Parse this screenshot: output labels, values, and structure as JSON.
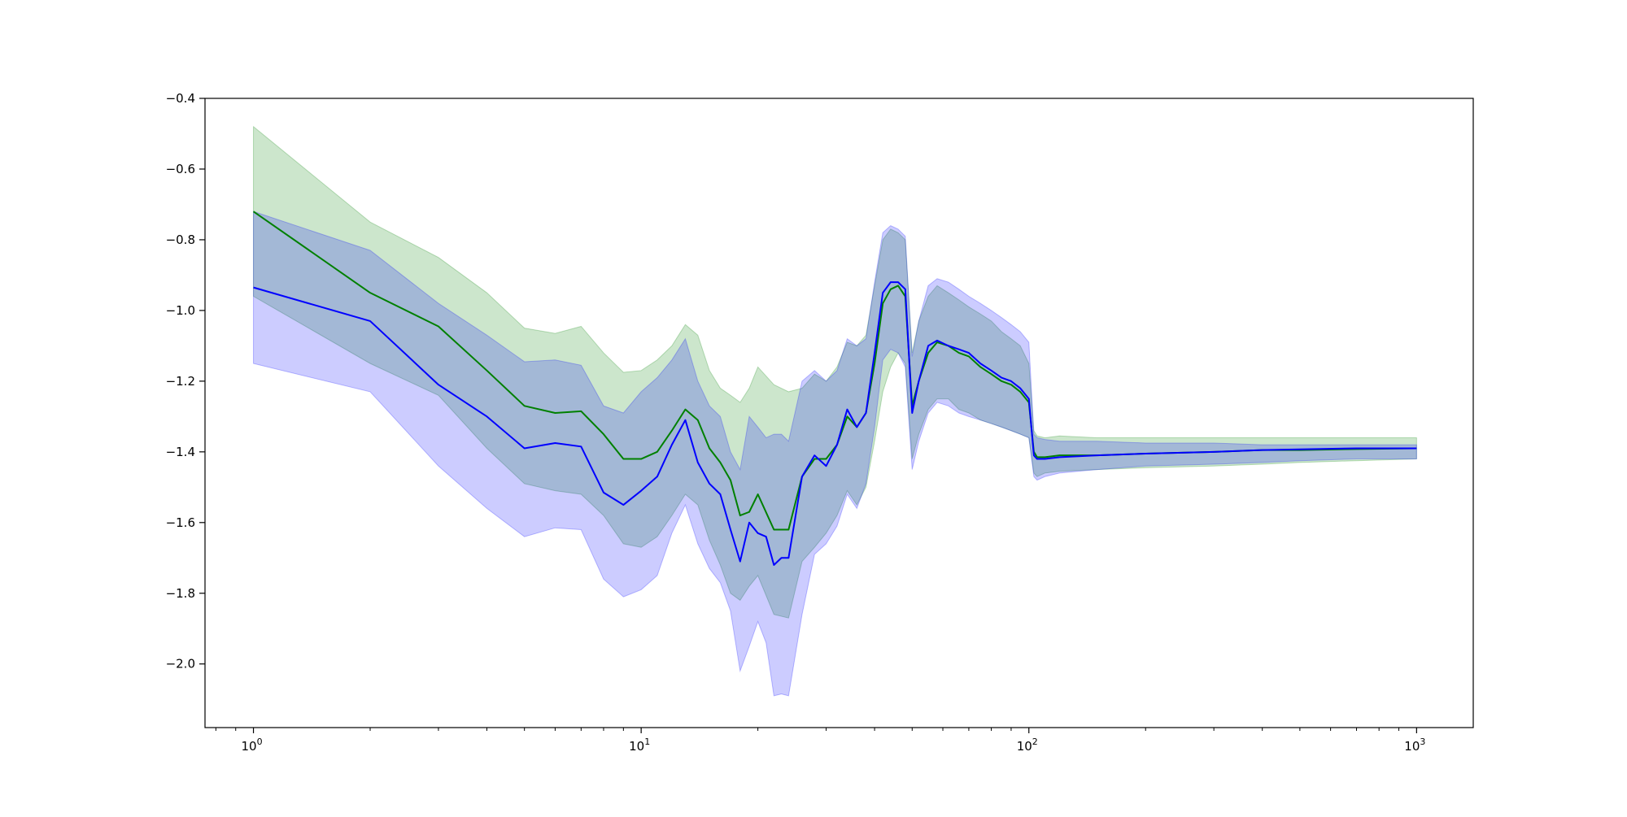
{
  "chart_data": {
    "type": "line",
    "title": "",
    "xlabel": "",
    "ylabel": "",
    "xscale": "log",
    "xlim": [
      0.75,
      1400
    ],
    "ylim": [
      -2.18,
      -0.4
    ],
    "grid": false,
    "x_ticks": [
      1,
      10,
      100,
      1000
    ],
    "x_tick_labels": [
      {
        "base": "10",
        "exp": "0"
      },
      {
        "base": "10",
        "exp": "1"
      },
      {
        "base": "10",
        "exp": "2"
      },
      {
        "base": "10",
        "exp": "3"
      }
    ],
    "y_ticks": [
      -2.0,
      -1.8,
      -1.6,
      -1.4,
      -1.2,
      -1.0,
      -0.8,
      -0.6,
      -0.4
    ],
    "y_tick_labels": [
      "−2.0",
      "−1.8",
      "−1.6",
      "−1.4",
      "−1.2",
      "−1.0",
      "−0.8",
      "−0.6",
      "−0.4"
    ],
    "series": [
      {
        "color": "#008000",
        "band_color": "#008000",
        "band_opacity": 0.2,
        "x": [
          1,
          2,
          3,
          4,
          5,
          6,
          7,
          8,
          9,
          10,
          11,
          12,
          13,
          14,
          15,
          16,
          17,
          18,
          19,
          20,
          22,
          24,
          26,
          28,
          30,
          32,
          34,
          36,
          38,
          40,
          42,
          44,
          46,
          48,
          50,
          52,
          55,
          58,
          62,
          66,
          70,
          75,
          80,
          85,
          90,
          95,
          100,
          103,
          105,
          110,
          120,
          150,
          200,
          300,
          400,
          500,
          700,
          1000
        ],
        "y": [
          -0.72,
          -0.95,
          -1.045,
          -1.17,
          -1.27,
          -1.29,
          -1.285,
          -1.35,
          -1.42,
          -1.42,
          -1.4,
          -1.34,
          -1.28,
          -1.31,
          -1.39,
          -1.43,
          -1.48,
          -1.58,
          -1.57,
          -1.52,
          -1.62,
          -1.62,
          -1.47,
          -1.42,
          -1.42,
          -1.38,
          -1.3,
          -1.33,
          -1.29,
          -1.15,
          -0.98,
          -0.94,
          -0.93,
          -0.96,
          -1.27,
          -1.2,
          -1.12,
          -1.09,
          -1.1,
          -1.12,
          -1.13,
          -1.16,
          -1.18,
          -1.2,
          -1.21,
          -1.23,
          -1.26,
          -1.4,
          -1.415,
          -1.415,
          -1.41,
          -1.41,
          -1.405,
          -1.4,
          -1.395,
          -1.395,
          -1.392,
          -1.39
        ],
        "lower": [
          -0.96,
          -1.15,
          -1.24,
          -1.39,
          -1.49,
          -1.51,
          -1.52,
          -1.58,
          -1.66,
          -1.67,
          -1.64,
          -1.58,
          -1.52,
          -1.55,
          -1.65,
          -1.72,
          -1.8,
          -1.82,
          -1.78,
          -1.75,
          -1.86,
          -1.87,
          -1.71,
          -1.67,
          -1.63,
          -1.58,
          -1.51,
          -1.55,
          -1.5,
          -1.37,
          -1.23,
          -1.16,
          -1.12,
          -1.15,
          -1.42,
          -1.35,
          -1.28,
          -1.25,
          -1.25,
          -1.28,
          -1.29,
          -1.31,
          -1.32,
          -1.33,
          -1.34,
          -1.35,
          -1.36,
          -1.46,
          -1.47,
          -1.46,
          -1.455,
          -1.45,
          -1.445,
          -1.44,
          -1.435,
          -1.43,
          -1.425,
          -1.42
        ],
        "upper": [
          -0.48,
          -0.75,
          -0.85,
          -0.95,
          -1.05,
          -1.065,
          -1.045,
          -1.12,
          -1.175,
          -1.17,
          -1.14,
          -1.1,
          -1.04,
          -1.07,
          -1.17,
          -1.22,
          -1.24,
          -1.26,
          -1.22,
          -1.16,
          -1.21,
          -1.23,
          -1.22,
          -1.18,
          -1.2,
          -1.16,
          -1.09,
          -1.1,
          -1.07,
          -0.93,
          -0.8,
          -0.77,
          -0.78,
          -0.8,
          -1.12,
          -1.03,
          -0.96,
          -0.93,
          -0.95,
          -0.97,
          -0.99,
          -1.01,
          -1.03,
          -1.06,
          -1.08,
          -1.1,
          -1.15,
          -1.34,
          -1.355,
          -1.36,
          -1.355,
          -1.36,
          -1.36,
          -1.36,
          -1.36,
          -1.36,
          -1.36,
          -1.36
        ]
      },
      {
        "color": "#0000ff",
        "band_color": "#0000ff",
        "band_opacity": 0.2,
        "x": [
          1,
          2,
          3,
          4,
          5,
          6,
          7,
          8,
          9,
          10,
          11,
          12,
          13,
          14,
          15,
          16,
          17,
          18,
          19,
          20,
          21,
          22,
          23,
          24,
          26,
          28,
          30,
          32,
          34,
          36,
          38,
          40,
          42,
          44,
          46,
          48,
          50,
          52,
          55,
          58,
          62,
          66,
          70,
          75,
          80,
          85,
          90,
          95,
          100,
          103,
          105,
          110,
          120,
          150,
          200,
          300,
          400,
          500,
          700,
          1000
        ],
        "y": [
          -0.935,
          -1.03,
          -1.21,
          -1.3,
          -1.39,
          -1.375,
          -1.385,
          -1.515,
          -1.55,
          -1.51,
          -1.47,
          -1.38,
          -1.31,
          -1.43,
          -1.49,
          -1.52,
          -1.62,
          -1.71,
          -1.6,
          -1.63,
          -1.64,
          -1.72,
          -1.7,
          -1.7,
          -1.47,
          -1.41,
          -1.44,
          -1.38,
          -1.28,
          -1.33,
          -1.29,
          -1.12,
          -0.95,
          -0.92,
          -0.92,
          -0.94,
          -1.29,
          -1.2,
          -1.1,
          -1.085,
          -1.1,
          -1.11,
          -1.12,
          -1.15,
          -1.17,
          -1.19,
          -1.2,
          -1.22,
          -1.25,
          -1.41,
          -1.42,
          -1.42,
          -1.415,
          -1.41,
          -1.405,
          -1.4,
          -1.395,
          -1.393,
          -1.39,
          -1.39
        ],
        "lower": [
          -1.15,
          -1.23,
          -1.44,
          -1.56,
          -1.64,
          -1.615,
          -1.62,
          -1.76,
          -1.81,
          -1.79,
          -1.75,
          -1.63,
          -1.55,
          -1.66,
          -1.73,
          -1.77,
          -1.85,
          -2.02,
          -1.95,
          -1.88,
          -1.94,
          -2.09,
          -2.085,
          -2.09,
          -1.86,
          -1.69,
          -1.66,
          -1.61,
          -1.52,
          -1.56,
          -1.49,
          -1.33,
          -1.14,
          -1.11,
          -1.12,
          -1.16,
          -1.45,
          -1.37,
          -1.29,
          -1.26,
          -1.27,
          -1.29,
          -1.3,
          -1.31,
          -1.32,
          -1.33,
          -1.34,
          -1.35,
          -1.36,
          -1.47,
          -1.48,
          -1.47,
          -1.46,
          -1.45,
          -1.44,
          -1.435,
          -1.43,
          -1.425,
          -1.42,
          -1.42
        ],
        "upper": [
          -0.72,
          -0.83,
          -0.98,
          -1.07,
          -1.145,
          -1.14,
          -1.155,
          -1.27,
          -1.29,
          -1.23,
          -1.19,
          -1.14,
          -1.08,
          -1.2,
          -1.27,
          -1.3,
          -1.4,
          -1.45,
          -1.3,
          -1.33,
          -1.36,
          -1.35,
          -1.35,
          -1.37,
          -1.2,
          -1.17,
          -1.2,
          -1.17,
          -1.08,
          -1.1,
          -1.08,
          -0.92,
          -0.78,
          -0.76,
          -0.77,
          -0.79,
          -1.13,
          -1.03,
          -0.93,
          -0.91,
          -0.92,
          -0.94,
          -0.96,
          -0.98,
          -1.0,
          -1.02,
          -1.04,
          -1.06,
          -1.09,
          -1.35,
          -1.36,
          -1.365,
          -1.37,
          -1.37,
          -1.375,
          -1.375,
          -1.38,
          -1.38,
          -1.38,
          -1.38
        ]
      }
    ]
  }
}
